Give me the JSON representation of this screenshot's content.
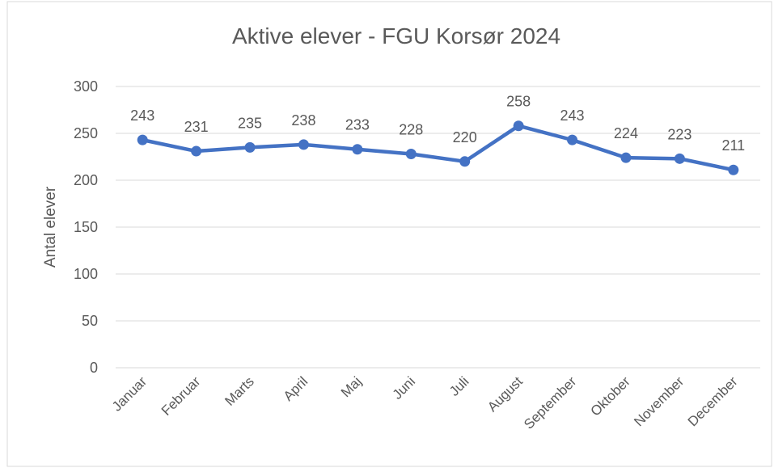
{
  "chart_data": {
    "type": "line",
    "title": "Aktive elever - FGU Korsør 2024",
    "y_label": "Antal elever",
    "categories": [
      "Januar",
      "Februar",
      "Marts",
      "April",
      "Maj",
      "Juni",
      "Juli",
      "August",
      "September",
      "Oktober",
      "November",
      "December"
    ],
    "series": [
      {
        "name": "Antal elever",
        "color": "#4472c4",
        "values": [
          243,
          231,
          235,
          238,
          233,
          228,
          220,
          258,
          243,
          224,
          223,
          211
        ]
      }
    ],
    "ylim": [
      0,
      300
    ],
    "yticks": [
      0,
      50,
      100,
      150,
      200,
      250,
      300
    ],
    "grid": true
  }
}
